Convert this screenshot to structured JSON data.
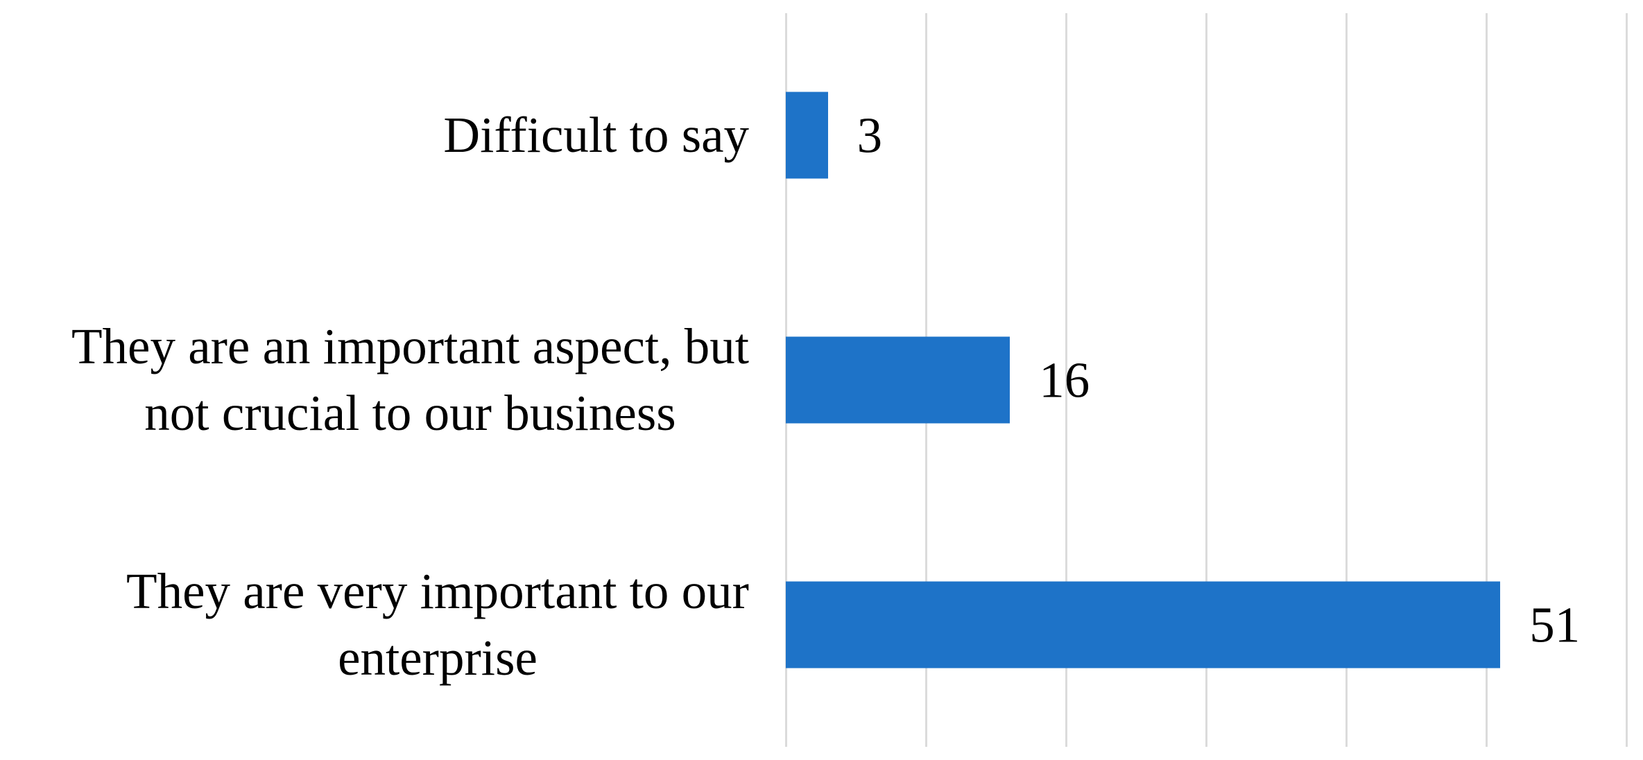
{
  "colors": {
    "bar": "#1E73C8",
    "gridline": "#DBDBDB",
    "text": "#000000",
    "background": "#FFFFFF"
  },
  "chart_data": {
    "type": "bar",
    "orientation": "horizontal",
    "title": "",
    "xlabel": "",
    "ylabel": "",
    "categories": [
      "Difficult to say",
      "They are an important aspect, but not crucial to our business",
      "They are very important to our enterprise"
    ],
    "category_lines": [
      [
        "Difficult to say"
      ],
      [
        "They are an important aspect, but",
        "not crucial to our business"
      ],
      [
        "They are very important to our",
        "enterprise"
      ]
    ],
    "values": [
      3,
      16,
      51
    ],
    "data_labels_visible": true,
    "xlim": [
      0,
      60
    ],
    "xtick_step": 10,
    "xtick_labels_visible": false,
    "grid": "vertical",
    "legend": "none"
  }
}
